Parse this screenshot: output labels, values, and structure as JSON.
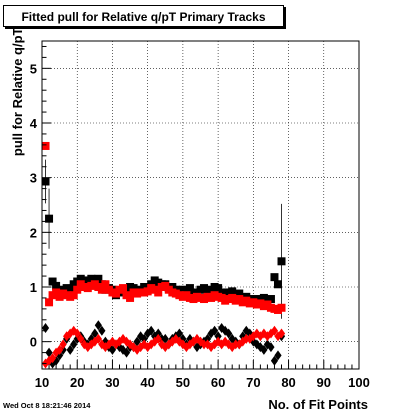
{
  "chart_data": {
    "type": "scatter",
    "title": "Fitted pull for Relative q/pT Primary Tracks",
    "xlabel": "No. of Fit Points",
    "ylabel": "pull for Relative q/pT",
    "xlim": [
      10,
      100
    ],
    "ylim": [
      -0.5,
      5.5
    ],
    "x_ticks": [
      10,
      20,
      30,
      40,
      50,
      60,
      70,
      80,
      90,
      100
    ],
    "y_ticks": [
      0,
      1,
      2,
      3,
      4,
      5
    ],
    "grid": true,
    "legend": "none",
    "series": [
      {
        "marker": "square",
        "color": "#000000",
        "points": [
          [
            11,
            2.93
          ],
          [
            12,
            2.25
          ],
          [
            13,
            1.1
          ],
          [
            14,
            1.02
          ],
          [
            15,
            0.95
          ],
          [
            16,
            0.93
          ],
          [
            17,
            0.98
          ],
          [
            18,
            0.93
          ],
          [
            19,
            1.05
          ],
          [
            20,
            1.1
          ],
          [
            21,
            1.15
          ],
          [
            22,
            1.12
          ],
          [
            23,
            1.05
          ],
          [
            24,
            1.15
          ],
          [
            25,
            1.1
          ],
          [
            26,
            1.15
          ],
          [
            27,
            1.05
          ],
          [
            28,
            0.95
          ],
          [
            29,
            0.98
          ],
          [
            30,
            0.95
          ],
          [
            31,
            0.85
          ],
          [
            32,
            0.9
          ],
          [
            33,
            0.92
          ],
          [
            34,
            0.95
          ],
          [
            35,
            1.0
          ],
          [
            36,
            0.98
          ],
          [
            37,
            0.92
          ],
          [
            38,
            0.95
          ],
          [
            39,
            1.0
          ],
          [
            40,
            1.0
          ],
          [
            41,
            1.05
          ],
          [
            42,
            1.12
          ],
          [
            43,
            1.08
          ],
          [
            44,
            1.05
          ],
          [
            45,
            1.05
          ],
          [
            46,
            0.98
          ],
          [
            47,
            1.0
          ],
          [
            48,
            0.95
          ],
          [
            49,
            0.92
          ],
          [
            50,
            0.95
          ],
          [
            51,
            0.92
          ],
          [
            52,
            0.98
          ],
          [
            53,
            0.9
          ],
          [
            54,
            0.88
          ],
          [
            55,
            0.95
          ],
          [
            56,
            0.98
          ],
          [
            57,
            0.95
          ],
          [
            58,
            0.92
          ],
          [
            59,
            1.0
          ],
          [
            60,
            0.98
          ],
          [
            61,
            0.9
          ],
          [
            62,
            0.85
          ],
          [
            63,
            0.9
          ],
          [
            64,
            0.92
          ],
          [
            65,
            0.85
          ],
          [
            66,
            0.88
          ],
          [
            67,
            0.8
          ],
          [
            68,
            0.82
          ],
          [
            69,
            0.78
          ],
          [
            70,
            0.75
          ],
          [
            71,
            0.78
          ],
          [
            72,
            0.72
          ],
          [
            73,
            0.8
          ],
          [
            74,
            0.75
          ],
          [
            75,
            0.78
          ],
          [
            76,
            1.18
          ],
          [
            77,
            1.05
          ],
          [
            78,
            1.47
          ]
        ],
        "errors": {
          "x": [
            11,
            12,
            78
          ],
          "err": [
            0.4,
            0.55,
            1.05
          ]
        }
      },
      {
        "marker": "square",
        "color": "#ff0000",
        "points": [
          [
            11,
            3.58
          ],
          [
            12,
            0.72
          ],
          [
            13,
            0.85
          ],
          [
            14,
            0.9
          ],
          [
            15,
            0.82
          ],
          [
            16,
            0.88
          ],
          [
            17,
            0.85
          ],
          [
            18,
            0.82
          ],
          [
            19,
            0.85
          ],
          [
            20,
            0.95
          ],
          [
            21,
            1.05
          ],
          [
            22,
            1.0
          ],
          [
            23,
            0.98
          ],
          [
            24,
            1.02
          ],
          [
            25,
            1.05
          ],
          [
            26,
            1.0
          ],
          [
            27,
            0.95
          ],
          [
            28,
            1.05
          ],
          [
            29,
            0.95
          ],
          [
            30,
            0.9
          ],
          [
            31,
            0.88
          ],
          [
            32,
            0.95
          ],
          [
            33,
            0.98
          ],
          [
            34,
            0.85
          ],
          [
            35,
            0.8
          ],
          [
            36,
            0.9
          ],
          [
            37,
            0.88
          ],
          [
            38,
            0.9
          ],
          [
            39,
            0.9
          ],
          [
            40,
            0.92
          ],
          [
            41,
            0.98
          ],
          [
            42,
            0.95
          ],
          [
            43,
            0.9
          ],
          [
            44,
            1.0
          ],
          [
            45,
            1.02
          ],
          [
            46,
            0.95
          ],
          [
            47,
            0.9
          ],
          [
            48,
            0.88
          ],
          [
            49,
            0.85
          ],
          [
            50,
            0.82
          ],
          [
            51,
            0.85
          ],
          [
            52,
            0.8
          ],
          [
            53,
            0.78
          ],
          [
            54,
            0.82
          ],
          [
            55,
            0.8
          ],
          [
            56,
            0.78
          ],
          [
            57,
            0.82
          ],
          [
            58,
            0.8
          ],
          [
            59,
            0.85
          ],
          [
            60,
            0.82
          ],
          [
            61,
            0.8
          ],
          [
            62,
            0.75
          ],
          [
            63,
            0.78
          ],
          [
            64,
            0.8
          ],
          [
            65,
            0.75
          ],
          [
            66,
            0.78
          ],
          [
            67,
            0.72
          ],
          [
            68,
            0.75
          ],
          [
            69,
            0.7
          ],
          [
            70,
            0.72
          ],
          [
            71,
            0.68
          ],
          [
            72,
            0.7
          ],
          [
            73,
            0.65
          ],
          [
            74,
            0.68
          ],
          [
            75,
            0.62
          ],
          [
            76,
            0.6
          ],
          [
            77,
            0.58
          ],
          [
            78,
            0.62
          ]
        ]
      },
      {
        "marker": "diamond",
        "color": "#000000",
        "points": [
          [
            11,
            0.25
          ],
          [
            12,
            -0.2
          ],
          [
            13,
            -0.4
          ],
          [
            14,
            -0.35
          ],
          [
            15,
            -0.25
          ],
          [
            16,
            -0.15
          ],
          [
            17,
            0.05
          ],
          [
            18,
            -0.15
          ],
          [
            19,
            -0.05
          ],
          [
            20,
            0.05
          ],
          [
            21,
            0.1
          ],
          [
            22,
            0.0
          ],
          [
            23,
            -0.05
          ],
          [
            24,
            0.05
          ],
          [
            25,
            0.15
          ],
          [
            26,
            0.3
          ],
          [
            27,
            0.2
          ],
          [
            28,
            0.0
          ],
          [
            29,
            -0.1
          ],
          [
            30,
            -0.15
          ],
          [
            31,
            -0.05
          ],
          [
            32,
            -0.1
          ],
          [
            33,
            -0.15
          ],
          [
            34,
            -0.2
          ],
          [
            35,
            -0.1
          ],
          [
            36,
            -0.1
          ],
          [
            37,
            0.0
          ],
          [
            38,
            0.1
          ],
          [
            39,
            0.05
          ],
          [
            40,
            0.15
          ],
          [
            41,
            0.2
          ],
          [
            42,
            0.1
          ],
          [
            43,
            0.15
          ],
          [
            44,
            0.05
          ],
          [
            45,
            0.05
          ],
          [
            46,
            -0.05
          ],
          [
            47,
            0.05
          ],
          [
            48,
            0.1
          ],
          [
            49,
            0.15
          ],
          [
            50,
            0.05
          ],
          [
            51,
            -0.05
          ],
          [
            52,
            0.05
          ],
          [
            53,
            0.0
          ],
          [
            54,
            -0.1
          ],
          [
            55,
            -0.05
          ],
          [
            56,
            0.0
          ],
          [
            57,
            0.05
          ],
          [
            58,
            0.15
          ],
          [
            59,
            0.2
          ],
          [
            60,
            0.1
          ],
          [
            61,
            0.25
          ],
          [
            62,
            0.2
          ],
          [
            63,
            0.15
          ],
          [
            64,
            0.05
          ],
          [
            65,
            0.0
          ],
          [
            66,
            -0.05
          ],
          [
            67,
            0.1
          ],
          [
            68,
            0.2
          ],
          [
            69,
            0.15
          ],
          [
            70,
            0.0
          ],
          [
            71,
            -0.05
          ],
          [
            72,
            -0.1
          ],
          [
            73,
            -0.15
          ],
          [
            74,
            -0.05
          ],
          [
            75,
            -0.1
          ],
          [
            76,
            -0.35
          ],
          [
            77,
            -0.25
          ],
          [
            78,
            0.1
          ]
        ]
      },
      {
        "marker": "diamond",
        "color": "#ff0000",
        "points": [
          [
            11,
            -0.4
          ],
          [
            12,
            -0.35
          ],
          [
            13,
            -0.3
          ],
          [
            14,
            -0.2
          ],
          [
            15,
            -0.15
          ],
          [
            16,
            -0.05
          ],
          [
            17,
            0.1
          ],
          [
            18,
            0.15
          ],
          [
            19,
            0.2
          ],
          [
            20,
            0.15
          ],
          [
            21,
            0.05
          ],
          [
            22,
            -0.05
          ],
          [
            23,
            -0.1
          ],
          [
            24,
            -0.05
          ],
          [
            25,
            0.0
          ],
          [
            26,
            0.05
          ],
          [
            27,
            -0.05
          ],
          [
            28,
            -0.1
          ],
          [
            29,
            -0.05
          ],
          [
            30,
            0.0
          ],
          [
            31,
            -0.05
          ],
          [
            32,
            0.0
          ],
          [
            33,
            0.05
          ],
          [
            34,
            0.0
          ],
          [
            35,
            -0.05
          ],
          [
            36,
            -0.1
          ],
          [
            37,
            -0.15
          ],
          [
            38,
            -0.1
          ],
          [
            39,
            -0.05
          ],
          [
            40,
            -0.1
          ],
          [
            41,
            -0.05
          ],
          [
            42,
            0.0
          ],
          [
            43,
            0.05
          ],
          [
            44,
            -0.05
          ],
          [
            45,
            -0.1
          ],
          [
            46,
            -0.05
          ],
          [
            47,
            0.0
          ],
          [
            48,
            0.05
          ],
          [
            49,
            0.0
          ],
          [
            50,
            -0.05
          ],
          [
            51,
            -0.1
          ],
          [
            52,
            -0.05
          ],
          [
            53,
            0.0
          ],
          [
            54,
            0.05
          ],
          [
            55,
            0.0
          ],
          [
            56,
            -0.05
          ],
          [
            57,
            -0.05
          ],
          [
            58,
            -0.1
          ],
          [
            59,
            -0.05
          ],
          [
            60,
            0.0
          ],
          [
            61,
            -0.05
          ],
          [
            62,
            0.0
          ],
          [
            63,
            -0.05
          ],
          [
            64,
            -0.1
          ],
          [
            65,
            -0.05
          ],
          [
            66,
            -0.05
          ],
          [
            67,
            0.0
          ],
          [
            68,
            0.05
          ],
          [
            69,
            0.05
          ],
          [
            70,
            0.1
          ],
          [
            71,
            0.15
          ],
          [
            72,
            0.1
          ],
          [
            73,
            0.15
          ],
          [
            74,
            0.1
          ],
          [
            75,
            0.15
          ],
          [
            76,
            0.2
          ],
          [
            77,
            0.1
          ],
          [
            78,
            0.15
          ]
        ]
      }
    ]
  },
  "footer": {
    "timestamp": "Wed Oct  8 18:21:46 2014"
  }
}
